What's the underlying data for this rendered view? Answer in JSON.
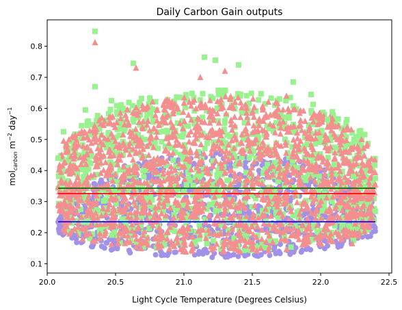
{
  "chart_data": {
    "type": "scatter",
    "title": "Daily Carbon Gain outputs",
    "xlabel": "Light Cycle Temperature (Degrees Celsius)",
    "ylabel": {
      "base": "mol",
      "sub": "carbon",
      "mid": " m",
      "sup1": "−2",
      "mid2": " day",
      "sup2": "−1"
    },
    "xlim": [
      20.0,
      22.52
    ],
    "ylim": [
      0.07,
      0.885
    ],
    "xticks": [
      20.0,
      20.5,
      21.0,
      21.5,
      22.0,
      22.5
    ],
    "yticks": [
      0.1,
      0.2,
      0.3,
      0.4,
      0.5,
      0.6,
      0.7,
      0.8
    ],
    "xtick_labels": [
      "20.0",
      "20.5",
      "21.0",
      "21.5",
      "22.0",
      "22.5"
    ],
    "ytick_labels": [
      "0.1",
      "0.2",
      "0.3",
      "0.4",
      "0.5",
      "0.6",
      "0.7",
      "0.8"
    ],
    "grid": false,
    "x_domain": [
      20.08,
      22.4
    ],
    "series": [
      {
        "marker": "circle",
        "color": "#a191e8",
        "band_low": [
          0.21,
          0.12
        ],
        "band_high": [
          0.26,
          0.46
        ],
        "mean_line": 0.235,
        "line_color": "#0000ff"
      },
      {
        "marker": "square",
        "color": "#98f28e",
        "band_low": [
          0.24,
          0.14
        ],
        "band_high": [
          0.44,
          0.66
        ],
        "mean_line": 0.343,
        "line_color": "#006400"
      },
      {
        "marker": "triangle",
        "color": "#f58f8f",
        "band_low": [
          0.23,
          0.135
        ],
        "band_high": [
          0.42,
          0.64
        ],
        "mean_line": 0.326,
        "line_color": "#ff0000"
      }
    ],
    "outliers": {
      "square": [
        [
          20.35,
          0.848
        ],
        [
          20.35,
          0.67
        ],
        [
          20.63,
          0.745
        ],
        [
          20.47,
          0.625
        ],
        [
          20.12,
          0.525
        ],
        [
          20.28,
          0.595
        ],
        [
          21.15,
          0.765
        ],
        [
          21.23,
          0.755
        ],
        [
          21.4,
          0.74
        ],
        [
          21.8,
          0.685
        ],
        [
          21.93,
          0.645
        ],
        [
          22.05,
          0.565
        ],
        [
          22.1,
          0.42
        ],
        [
          22.24,
          0.38
        ],
        [
          22.4,
          0.375
        ],
        [
          20.08,
          0.44
        ],
        [
          22.24,
          0.175
        ]
      ],
      "triangle": [
        [
          20.35,
          0.812
        ],
        [
          20.12,
          0.495
        ],
        [
          20.65,
          0.73
        ],
        [
          21.12,
          0.7
        ],
        [
          21.3,
          0.72
        ],
        [
          21.75,
          0.64
        ],
        [
          22.05,
          0.54
        ],
        [
          22.4,
          0.355
        ],
        [
          20.08,
          0.29
        ],
        [
          22.23,
          0.165
        ]
      ],
      "circle": [
        [
          20.09,
          0.225
        ],
        [
          20.1,
          0.245
        ],
        [
          22.4,
          0.205
        ],
        [
          22.39,
          0.222
        ],
        [
          20.2,
          0.19
        ]
      ]
    }
  }
}
